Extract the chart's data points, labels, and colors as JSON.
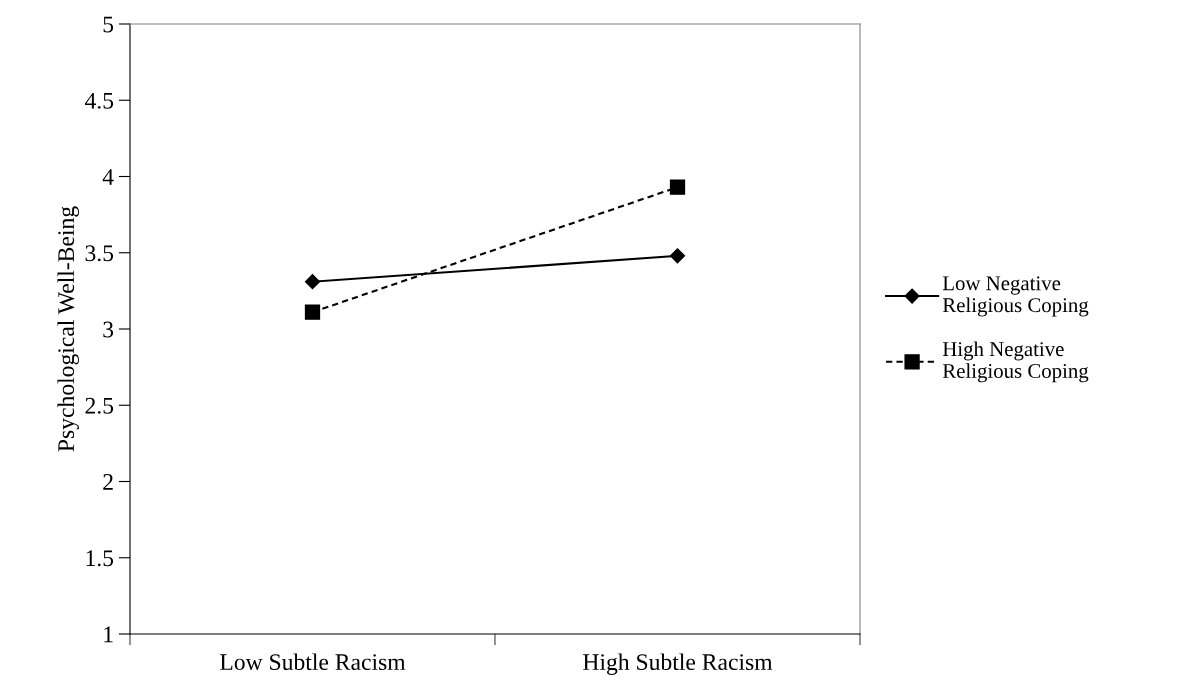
{
  "chart_data": {
    "type": "line",
    "ylabel": "Psychological Well-Being",
    "categories": [
      "Low Subtle Racism",
      "High Subtle Racism"
    ],
    "series": [
      {
        "name": "Low Negative\nReligious Coping",
        "color": "#000000",
        "values": [
          3.31,
          3.48
        ],
        "marker": "diamond",
        "line_style": "solid"
      },
      {
        "name": "High Negative\nReligious Coping",
        "color": "#000000",
        "values": [
          3.11,
          3.93
        ],
        "marker": "square",
        "line_style": "dashed"
      }
    ],
    "ylim": [
      1,
      5
    ],
    "yticks": [
      1,
      1.5,
      2,
      2.5,
      3,
      3.5,
      4,
      4.5,
      5
    ],
    "grid": false,
    "legend": "right"
  }
}
